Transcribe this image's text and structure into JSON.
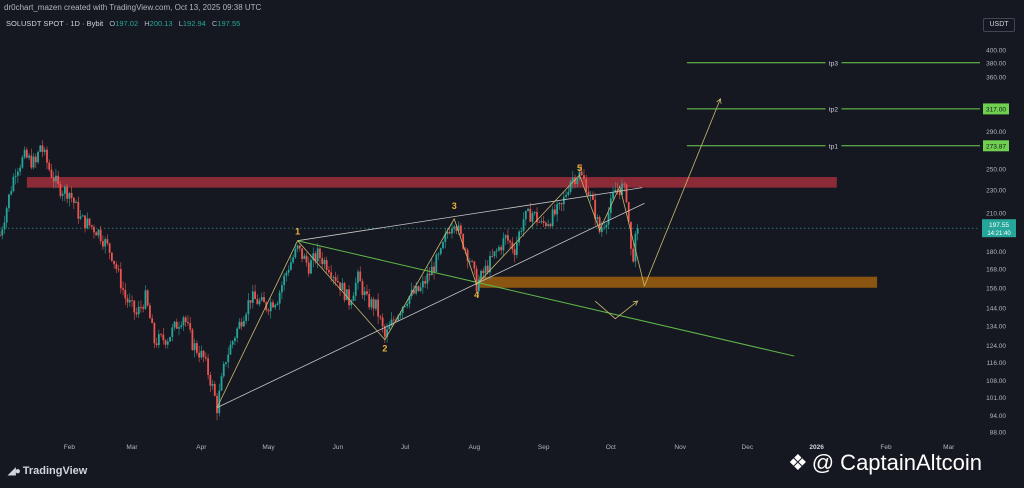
{
  "header": {
    "credit": "dr0chart_mazen created with TradingView.com, Oct 13, 2025 09:38 UTC",
    "symbol": "SOLUSDT SPOT · 1D · Bybit",
    "open_label": "O",
    "open": "197.02",
    "high_label": "H",
    "high": "200.13",
    "low_label": "L",
    "low": "192.94",
    "close_label": "C",
    "close": "197.55",
    "currency": "USDT"
  },
  "footer": {
    "logo_text": "TradingView",
    "watermark": "@ CaptainAltcoin"
  },
  "colors": {
    "background": "#151820",
    "up": "#26a69a",
    "down": "#ef5350",
    "resistance_zone": "#b2323f",
    "support_zone": "#b06a0c",
    "wave_lines": "#c9b870",
    "wedge_lines": "#c8c8c8",
    "trendline": "#5fb64a",
    "target_lines": "#6fcf4f",
    "labels": "#f0b23a",
    "price_line": "#26a69a"
  },
  "chart_data": {
    "type": "candlestick",
    "symbol": "SOLUSDT",
    "timeframe": "1D",
    "exchange": "Bybit",
    "y_scale": "log",
    "ylim": [
      86,
      430
    ],
    "yticks": [
      400,
      380,
      360,
      317,
      290,
      273.87,
      250,
      230,
      210,
      197.55,
      180,
      168,
      156,
      144,
      134,
      124,
      116,
      108,
      101,
      94,
      88
    ],
    "ytick_labels": [
      "400.00",
      "380.00",
      "360.00",
      "317.00",
      "290.00",
      "273.87",
      "250.00",
      "230.00",
      "210.00",
      "197.55",
      "180.00",
      "168.00",
      "156.00",
      "144.00",
      "134.00",
      "124.00",
      "116.00",
      "108.00",
      "101.00",
      "94.00",
      "88.00"
    ],
    "x_start": "2025-01-01",
    "x_end": "2026-03-15",
    "xtick_labels": [
      {
        "date": "2025-02-01",
        "label": "Feb"
      },
      {
        "date": "2025-03-01",
        "label": "Mar"
      },
      {
        "date": "2025-04-01",
        "label": "Apr"
      },
      {
        "date": "2025-05-01",
        "label": "May"
      },
      {
        "date": "2025-06-01",
        "label": "Jun"
      },
      {
        "date": "2025-07-01",
        "label": "Jul"
      },
      {
        "date": "2025-08-01",
        "label": "Aug"
      },
      {
        "date": "2025-09-01",
        "label": "Sep"
      },
      {
        "date": "2025-10-01",
        "label": "Oct"
      },
      {
        "date": "2025-11-01",
        "label": "Nov"
      },
      {
        "date": "2025-12-01",
        "label": "Dec"
      },
      {
        "date": "2026-01-01",
        "label": "2026"
      },
      {
        "date": "2026-02-01",
        "label": "Feb"
      },
      {
        "date": "2026-03-01",
        "label": "Mar"
      }
    ],
    "current_price": 197.55,
    "countdown": "14:21:40",
    "price_path": [
      [
        "2025-01-01",
        192
      ],
      [
        "2025-01-04",
        215
      ],
      [
        "2025-01-08",
        250
      ],
      [
        "2025-01-12",
        262
      ],
      [
        "2025-01-17",
        255
      ],
      [
        "2025-01-19",
        275
      ],
      [
        "2025-01-23",
        250
      ],
      [
        "2025-01-27",
        232
      ],
      [
        "2025-02-01",
        228
      ],
      [
        "2025-02-06",
        205
      ],
      [
        "2025-02-10",
        200
      ],
      [
        "2025-02-14",
        195
      ],
      [
        "2025-02-20",
        178
      ],
      [
        "2025-02-26",
        150
      ],
      [
        "2025-03-03",
        140
      ],
      [
        "2025-03-07",
        150
      ],
      [
        "2025-03-11",
        126
      ],
      [
        "2025-03-17",
        128
      ],
      [
        "2025-03-24",
        140
      ],
      [
        "2025-03-28",
        125
      ],
      [
        "2025-04-02",
        118
      ],
      [
        "2025-04-06",
        105
      ],
      [
        "2025-04-08",
        97
      ],
      [
        "2025-04-12",
        118
      ],
      [
        "2025-04-18",
        135
      ],
      [
        "2025-04-23",
        150
      ],
      [
        "2025-04-30",
        145
      ],
      [
        "2025-05-05",
        150
      ],
      [
        "2025-05-10",
        170
      ],
      [
        "2025-05-14",
        182
      ],
      [
        "2025-05-19",
        170
      ],
      [
        "2025-05-23",
        178
      ],
      [
        "2025-05-28",
        170
      ],
      [
        "2025-06-02",
        158
      ],
      [
        "2025-06-06",
        148
      ],
      [
        "2025-06-10",
        162
      ],
      [
        "2025-06-14",
        148
      ],
      [
        "2025-06-18",
        145
      ],
      [
        "2025-06-22",
        128
      ],
      [
        "2025-06-27",
        140
      ],
      [
        "2025-07-02",
        150
      ],
      [
        "2025-07-08",
        155
      ],
      [
        "2025-07-12",
        165
      ],
      [
        "2025-07-17",
        178
      ],
      [
        "2025-07-20",
        195
      ],
      [
        "2025-07-23",
        205
      ],
      [
        "2025-07-26",
        190
      ],
      [
        "2025-07-30",
        175
      ],
      [
        "2025-08-02",
        158
      ],
      [
        "2025-08-07",
        170
      ],
      [
        "2025-08-11",
        180
      ],
      [
        "2025-08-15",
        190
      ],
      [
        "2025-08-19",
        182
      ],
      [
        "2025-08-23",
        205
      ],
      [
        "2025-08-27",
        210
      ],
      [
        "2025-08-31",
        200
      ],
      [
        "2025-09-04",
        205
      ],
      [
        "2025-09-09",
        215
      ],
      [
        "2025-09-13",
        240
      ],
      [
        "2025-09-17",
        245
      ],
      [
        "2025-09-20",
        235
      ],
      [
        "2025-09-24",
        210
      ],
      [
        "2025-09-26",
        195
      ],
      [
        "2025-09-30",
        210
      ],
      [
        "2025-10-03",
        230
      ],
      [
        "2025-10-06",
        232
      ],
      [
        "2025-10-08",
        225
      ],
      [
        "2025-10-10",
        180
      ],
      [
        "2025-10-11",
        178
      ],
      [
        "2025-10-13",
        197.55
      ]
    ],
    "resistance_zone": {
      "from": "2025-01-13",
      "to": "2026-01-10",
      "low": 232,
      "high": 242
    },
    "support_zone": {
      "from": "2025-08-03",
      "to": "2026-01-28",
      "low": 156,
      "high": 163
    },
    "elliott_labels": [
      {
        "label": "1",
        "date": "2025-05-14",
        "price": 188
      },
      {
        "label": "2",
        "date": "2025-06-22",
        "price": 127
      },
      {
        "label": "3",
        "date": "2025-07-23",
        "price": 208
      },
      {
        "label": "4",
        "date": "2025-08-02",
        "price": 157
      },
      {
        "label": "5",
        "date": "2025-09-17",
        "price": 242
      }
    ],
    "targets": [
      {
        "label": "tp1",
        "price": 273.87
      },
      {
        "label": "tp2",
        "price": 317.0
      },
      {
        "label": "tp3",
        "price": 380.63
      }
    ]
  }
}
